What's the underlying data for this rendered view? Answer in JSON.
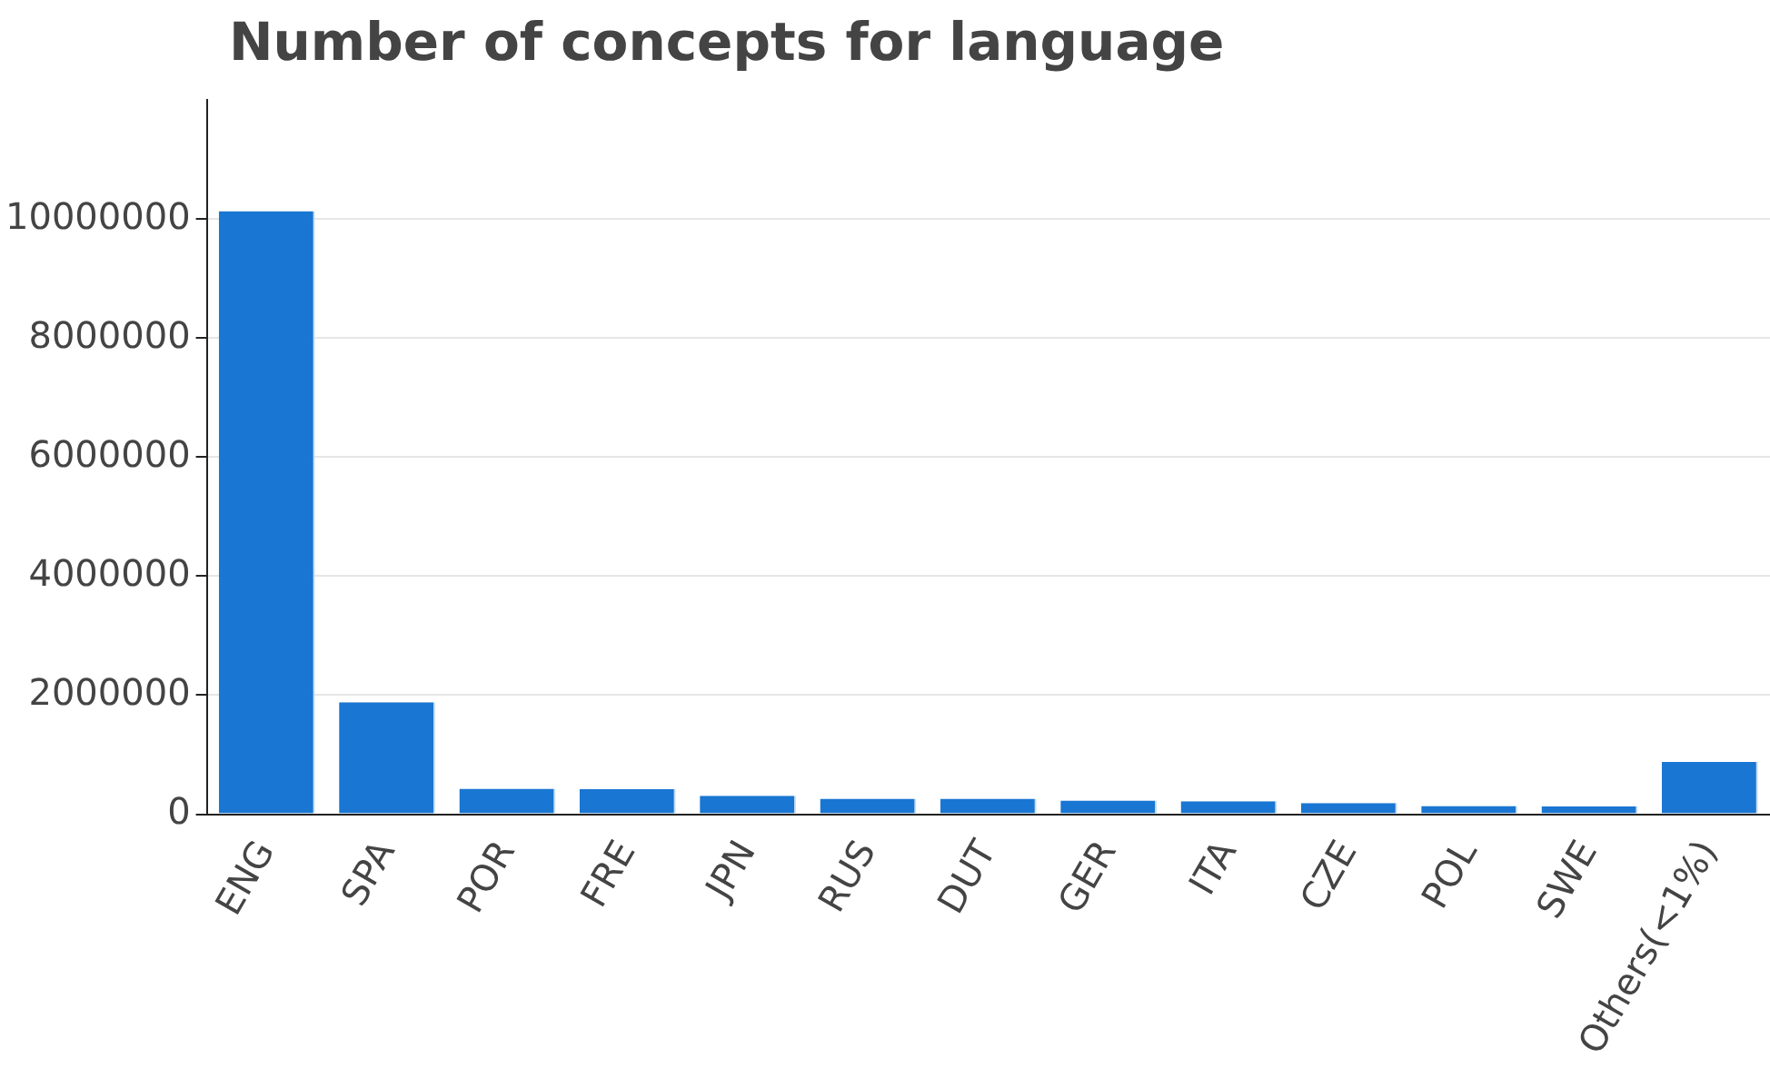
{
  "chart_data": {
    "type": "bar",
    "title": "Number of concepts for language",
    "categories": [
      "ENG",
      "SPA",
      "POR",
      "FRE",
      "JPN",
      "RUS",
      "DUT",
      "GER",
      "ITA",
      "CZE",
      "POL",
      "SWE",
      "Others(<1%)"
    ],
    "values": [
      10130000,
      1880000,
      430000,
      420000,
      310000,
      260000,
      260000,
      230000,
      220000,
      190000,
      140000,
      130000,
      880000
    ],
    "color": "#1976d2",
    "ylim": [
      0,
      12000000
    ],
    "yticks": [
      0,
      2000000,
      4000000,
      6000000,
      8000000,
      10000000
    ],
    "grid": "y",
    "legend": false
  }
}
